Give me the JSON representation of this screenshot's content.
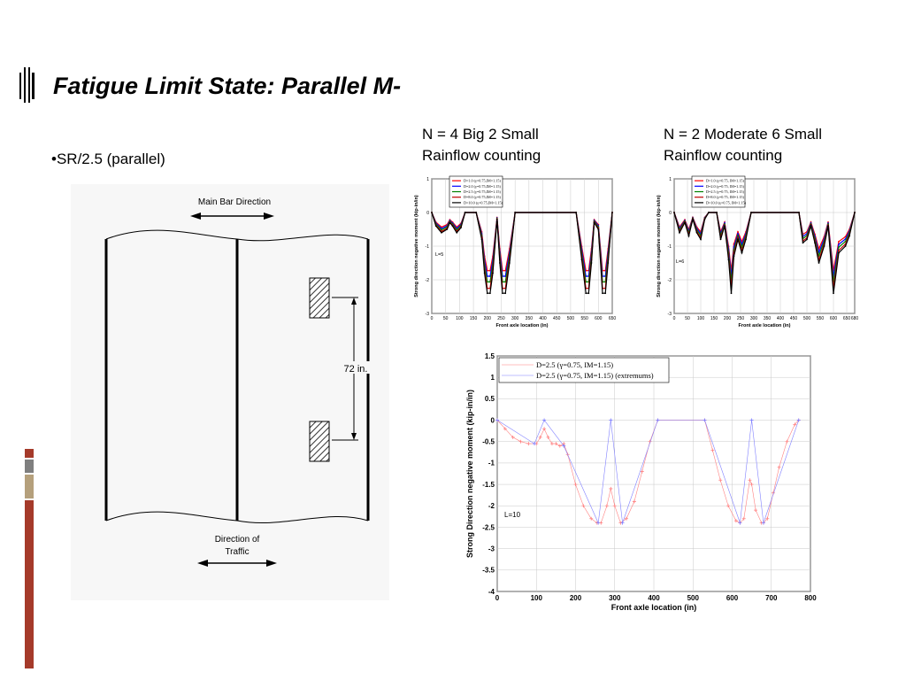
{
  "slide": {
    "title": "Fatigue Limit State: Parallel M-",
    "bullet": "•SR/2.5  (parallel)",
    "caption_left": [
      "N = 4 Big 2 Small",
      "Rainflow counting"
    ],
    "caption_right": [
      "N = 2 Moderate 6 Small",
      "Rainflow counting"
    ],
    "accent_colors": [
      "#a53a2a",
      "#7f7f7f",
      "#b5a07c",
      "#a53a2a"
    ]
  },
  "diagram": {
    "main_bar_label": "Main Bar Direction",
    "spacing_label": "72 in.",
    "traffic_label_1": "Direction of",
    "traffic_label_2": "Traffic"
  },
  "chart_data": [
    {
      "type": "line",
      "xlabel": "Front axle location (in)",
      "ylabel": "Strong direction negative moment (kip-in/in)",
      "xlim": [
        0,
        650
      ],
      "ylim": [
        -3,
        1
      ],
      "xticks": [
        0,
        50,
        100,
        150,
        200,
        250,
        300,
        350,
        400,
        450,
        500,
        550,
        600,
        650
      ],
      "yticks": [
        1,
        0,
        -1,
        -2,
        -3
      ],
      "annotation": "L=5",
      "grid": true,
      "legend_position": "top-left",
      "series": [
        {
          "name": "D=1.0 (γ=0.75,IM=1.15)",
          "color": "#ff0000",
          "scale": 0.72
        },
        {
          "name": "D=2.0 (γ=0.75,IM=1.15)",
          "color": "#0000ff",
          "scale": 0.79
        },
        {
          "name": "D=2.5 (γ=0.75,IM=1.15)",
          "color": "#008000",
          "scale": 0.86
        },
        {
          "name": "D=8.0 (γ=0.75,IM=1.15)",
          "color": "#c00000",
          "scale": 0.94
        },
        {
          "name": "D=10.0 (γ=0.75,IM=1.15)",
          "color": "#000000",
          "scale": 1.0
        }
      ],
      "x": [
        0,
        15,
        35,
        55,
        65,
        75,
        90,
        105,
        120,
        160,
        180,
        190,
        200,
        210,
        220,
        235,
        245,
        255,
        265,
        280,
        300,
        520,
        540,
        555,
        565,
        575,
        585,
        600,
        615,
        625,
        635,
        650
      ],
      "base_values": [
        0,
        -0.4,
        -0.6,
        -0.5,
        -0.3,
        -0.4,
        -0.6,
        -0.45,
        0,
        0,
        -0.8,
        -1.8,
        -2.4,
        -2.4,
        -1.8,
        -0.2,
        -1.5,
        -2.4,
        -2.4,
        -1.5,
        0,
        0,
        -1.4,
        -2.4,
        -2.4,
        -1.5,
        -0.3,
        -0.5,
        -2.4,
        -2.4,
        -1.5,
        0
      ]
    },
    {
      "type": "line",
      "xlabel": "Front axle location (in)",
      "ylabel": "Strong direction negative moment (kip-in/in)",
      "xlim": [
        0,
        680
      ],
      "ylim": [
        -3,
        1
      ],
      "xticks": [
        0,
        50,
        100,
        150,
        200,
        250,
        300,
        350,
        400,
        450,
        500,
        550,
        600,
        650,
        680
      ],
      "yticks": [
        1,
        0,
        -1,
        -2,
        -3
      ],
      "annotation": "L=6",
      "grid": true,
      "legend_position": "top-left",
      "series": [
        {
          "name": "D=1.0 (γ=0.75, IM=1.15)",
          "color": "#ff0000",
          "scale": 0.72
        },
        {
          "name": "D=2.0 (γ=0.75, IM=1.15)",
          "color": "#0000ff",
          "scale": 0.79
        },
        {
          "name": "D=2.5 (γ=0.75, IM=1.15)",
          "color": "#008000",
          "scale": 0.86
        },
        {
          "name": "D=8.0 (γ=0.75, IM=1.15)",
          "color": "#c00000",
          "scale": 0.94
        },
        {
          "name": "D=10.0 (γ=0.75, IM=1.15)",
          "color": "#000000",
          "scale": 1.0
        }
      ],
      "x": [
        0,
        20,
        40,
        55,
        70,
        85,
        100,
        115,
        130,
        160,
        175,
        190,
        205,
        215,
        225,
        240,
        255,
        270,
        290,
        470,
        485,
        500,
        515,
        530,
        545,
        565,
        580,
        600,
        620,
        645,
        660,
        680
      ],
      "base_values": [
        0,
        -0.6,
        -0.3,
        -0.7,
        -0.2,
        -0.6,
        -0.8,
        -0.2,
        0,
        0,
        -0.8,
        -0.4,
        -1.4,
        -2.4,
        -1.3,
        -0.8,
        -1.2,
        -0.8,
        0,
        0,
        -0.9,
        -0.8,
        -0.4,
        -0.9,
        -1.5,
        -1.0,
        -0.4,
        -2.4,
        -1.2,
        -1.0,
        -0.7,
        0
      ]
    },
    {
      "type": "line",
      "xlabel": "Front axle location (in)",
      "ylabel": "Strong Direction negative moment (kip-in/in)",
      "xlim": [
        0,
        800
      ],
      "ylim": [
        -4,
        1.5
      ],
      "xticks": [
        0,
        100,
        200,
        300,
        400,
        500,
        600,
        700,
        800
      ],
      "yticks": [
        1.5,
        1,
        0.5,
        0,
        -0.5,
        -1,
        -1.5,
        -2,
        -2.5,
        -3,
        -3.5,
        -4
      ],
      "annotation": "L=10",
      "grid": true,
      "legend_position": "top-left",
      "series": [
        {
          "name": "D=2.5 (γ=0.75, IM=1.15)",
          "color": "#ff8080",
          "x": [
            0,
            20,
            40,
            60,
            80,
            100,
            110,
            120,
            130,
            140,
            150,
            160,
            170,
            180,
            200,
            220,
            240,
            255,
            265,
            280,
            290,
            300,
            315,
            330,
            350,
            370,
            390,
            410,
            530,
            550,
            570,
            590,
            610,
            620,
            630,
            645,
            650,
            660,
            675,
            680,
            690,
            705,
            720,
            740,
            760,
            770
          ],
          "values": [
            0,
            -0.2,
            -0.4,
            -0.5,
            -0.55,
            -0.55,
            -0.4,
            -0.2,
            -0.4,
            -0.55,
            -0.55,
            -0.6,
            -0.55,
            -0.8,
            -1.5,
            -2.0,
            -2.3,
            -2.4,
            -2.4,
            -2.0,
            -1.6,
            -2.0,
            -2.4,
            -2.3,
            -1.9,
            -1.2,
            -0.5,
            0,
            0,
            -0.7,
            -1.4,
            -2.0,
            -2.35,
            -2.4,
            -2.3,
            -1.4,
            -1.5,
            -2.1,
            -2.4,
            -2.4,
            -2.3,
            -1.7,
            -1.1,
            -0.5,
            -0.1,
            0
          ]
        },
        {
          "name": "D=2.5 (γ=0.75, IM=1.15) (extremums)",
          "color": "#8080ff",
          "x": [
            0,
            95,
            120,
            170,
            258,
            290,
            320,
            410,
            530,
            620,
            650,
            680,
            770
          ],
          "values": [
            0,
            -0.55,
            0,
            -0.6,
            -2.4,
            0,
            -2.4,
            0,
            0,
            -2.4,
            0,
            -2.4,
            0
          ]
        }
      ]
    }
  ]
}
